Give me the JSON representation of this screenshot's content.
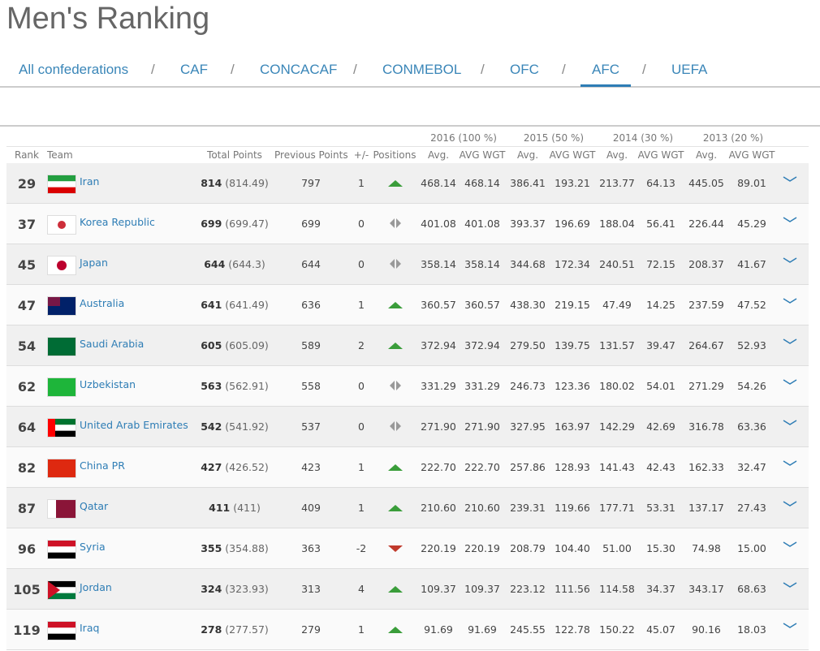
{
  "header": {
    "title": "Men's Ranking",
    "separator": "/",
    "nav": [
      "All confederations",
      "CAF",
      "CONCACAF",
      "CONMEBOL",
      "OFC",
      "AFC",
      "UEFA"
    ],
    "active_nav": 5
  },
  "table": {
    "group_headers": [
      "2016 (100 %)",
      "2015 (50 %)",
      "2014 (30 %)",
      "2013 (20 %)"
    ],
    "headers": [
      "Rank",
      "Team",
      "Total Points",
      "Previous Points",
      "+/-",
      "Positions",
      "Avg.",
      "AVG WGT",
      "Avg.",
      "AVG WGT",
      "Avg.",
      "AVG WGT",
      "Avg.",
      "AVG WGT"
    ],
    "rows": [
      {
        "rank": 29,
        "team": "Iran",
        "total": 814,
        "total_exact": "(814.49)",
        "previous": 797,
        "change": 1,
        "values": [
          "468.14",
          "468.14",
          "386.41",
          "193.21",
          "213.77",
          "64.13",
          "445.05",
          "89.01"
        ]
      },
      {
        "rank": 37,
        "team": "Korea Republic",
        "total": 699,
        "total_exact": "(699.47)",
        "previous": 699,
        "change": 0,
        "values": [
          "401.08",
          "401.08",
          "393.37",
          "196.69",
          "188.04",
          "56.41",
          "226.44",
          "45.29"
        ]
      },
      {
        "rank": 45,
        "team": "Japan",
        "total": 644,
        "total_exact": "(644.3)",
        "previous": 644,
        "change": 0,
        "values": [
          "358.14",
          "358.14",
          "344.68",
          "172.34",
          "240.51",
          "72.15",
          "208.37",
          "41.67"
        ]
      },
      {
        "rank": 47,
        "team": "Australia",
        "total": 641,
        "total_exact": "(641.49)",
        "previous": 636,
        "change": 1,
        "values": [
          "360.57",
          "360.57",
          "438.30",
          "219.15",
          "47.49",
          "14.25",
          "237.59",
          "47.52"
        ]
      },
      {
        "rank": 54,
        "team": "Saudi Arabia",
        "total": 605,
        "total_exact": "(605.09)",
        "previous": 589,
        "change": 2,
        "values": [
          "372.94",
          "372.94",
          "279.50",
          "139.75",
          "131.57",
          "39.47",
          "264.67",
          "52.93"
        ]
      },
      {
        "rank": 62,
        "team": "Uzbekistan",
        "total": 563,
        "total_exact": "(562.91)",
        "previous": 558,
        "change": 0,
        "values": [
          "331.29",
          "331.29",
          "246.73",
          "123.36",
          "180.02",
          "54.01",
          "271.29",
          "54.26"
        ]
      },
      {
        "rank": 64,
        "team": "United Arab Emirates",
        "total": 542,
        "total_exact": "(541.92)",
        "previous": 537,
        "change": 0,
        "values": [
          "271.90",
          "271.90",
          "327.95",
          "163.97",
          "142.29",
          "42.69",
          "316.78",
          "63.36"
        ]
      },
      {
        "rank": 82,
        "team": "China PR",
        "total": 427,
        "total_exact": "(426.52)",
        "previous": 423,
        "change": 1,
        "values": [
          "222.70",
          "222.70",
          "257.86",
          "128.93",
          "141.43",
          "42.43",
          "162.33",
          "32.47"
        ]
      },
      {
        "rank": 87,
        "team": "Qatar",
        "total": 411,
        "total_exact": "(411)",
        "previous": 409,
        "change": 1,
        "values": [
          "210.60",
          "210.60",
          "239.31",
          "119.66",
          "177.71",
          "53.31",
          "137.17",
          "27.43"
        ]
      },
      {
        "rank": 96,
        "team": "Syria",
        "total": 355,
        "total_exact": "(354.88)",
        "previous": 363,
        "change": -2,
        "values": [
          "220.19",
          "220.19",
          "208.79",
          "104.40",
          "51.00",
          "15.30",
          "74.98",
          "15.00"
        ]
      },
      {
        "rank": 105,
        "team": "Jordan",
        "total": 324,
        "total_exact": "(323.93)",
        "previous": 313,
        "change": 4,
        "values": [
          "109.37",
          "109.37",
          "223.12",
          "111.56",
          "114.58",
          "34.37",
          "343.17",
          "68.63"
        ]
      },
      {
        "rank": 119,
        "team": "Iraq",
        "total": 278,
        "total_exact": "(277.57)",
        "previous": 279,
        "change": 1,
        "values": [
          "91.69",
          "91.69",
          "245.55",
          "122.78",
          "150.22",
          "45.07",
          "90.16",
          "18.03"
        ]
      }
    ]
  }
}
